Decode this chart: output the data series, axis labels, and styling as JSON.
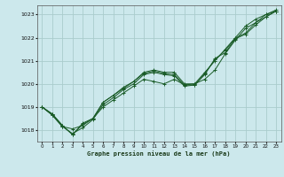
{
  "xlabel": "Graphe pression niveau de la mer (hPa)",
  "ylim": [
    1017.5,
    1023.4
  ],
  "xlim": [
    -0.5,
    23.5
  ],
  "xticks": [
    0,
    1,
    2,
    3,
    4,
    5,
    6,
    7,
    8,
    9,
    10,
    11,
    12,
    13,
    14,
    15,
    16,
    17,
    18,
    19,
    20,
    21,
    22,
    23
  ],
  "yticks": [
    1018,
    1019,
    1020,
    1021,
    1022,
    1023
  ],
  "background_color": "#cce8ec",
  "grid_color": "#aacccc",
  "line_color": "#1a5c28",
  "lines": [
    {
      "x": [
        0,
        1,
        2,
        3,
        4,
        5,
        6,
        7,
        8,
        9,
        10,
        11,
        12,
        13,
        14,
        15,
        16,
        17,
        18,
        19,
        20,
        21,
        22,
        23
      ],
      "y": [
        1019.0,
        1018.7,
        1018.2,
        1017.8,
        1018.3,
        1018.5,
        1019.2,
        1019.5,
        1019.8,
        1020.1,
        1020.5,
        1020.6,
        1020.5,
        1020.5,
        1020.0,
        1020.0,
        1020.5,
        1021.0,
        1021.5,
        1022.0,
        1022.5,
        1022.8,
        1023.0,
        1023.2
      ]
    },
    {
      "x": [
        0,
        1,
        2,
        3,
        4,
        5,
        6,
        7,
        8,
        9,
        10,
        11,
        12,
        13,
        14,
        15,
        16,
        17,
        18,
        19,
        20,
        21,
        22,
        23
      ],
      "y": [
        1019.0,
        1018.65,
        1018.15,
        1018.05,
        1018.2,
        1018.5,
        1019.0,
        1019.3,
        1019.6,
        1019.9,
        1020.2,
        1020.1,
        1020.0,
        1020.2,
        1019.95,
        1020.0,
        1020.2,
        1020.6,
        1021.3,
        1021.9,
        1022.4,
        1022.65,
        1022.9,
        1023.15
      ]
    },
    {
      "x": [
        0,
        1,
        2,
        3,
        4,
        5,
        6,
        7,
        8,
        9,
        10,
        11,
        12,
        13,
        14,
        15,
        16,
        17,
        18,
        19,
        20,
        21,
        22,
        23
      ],
      "y": [
        1019.0,
        1018.65,
        1018.15,
        1017.85,
        1018.1,
        1018.45,
        1019.1,
        1019.4,
        1019.75,
        1020.0,
        1020.4,
        1020.5,
        1020.4,
        1020.35,
        1019.9,
        1019.95,
        1020.4,
        1021.1,
        1021.35,
        1021.95,
        1022.15,
        1022.55,
        1022.9,
        1023.15
      ]
    },
    {
      "x": [
        0,
        1,
        2,
        3,
        4,
        5,
        6,
        7,
        8,
        9,
        10,
        11,
        12,
        13,
        14,
        15,
        16,
        17,
        18,
        19,
        20,
        21,
        22,
        23
      ],
      "y": [
        1019.0,
        1018.7,
        1018.2,
        1017.8,
        1018.25,
        1018.5,
        1019.2,
        1019.5,
        1019.85,
        1020.1,
        1020.45,
        1020.55,
        1020.45,
        1020.4,
        1019.95,
        1019.95,
        1020.45,
        1021.05,
        1021.45,
        1021.98,
        1022.2,
        1022.65,
        1023.0,
        1023.15
      ]
    }
  ]
}
